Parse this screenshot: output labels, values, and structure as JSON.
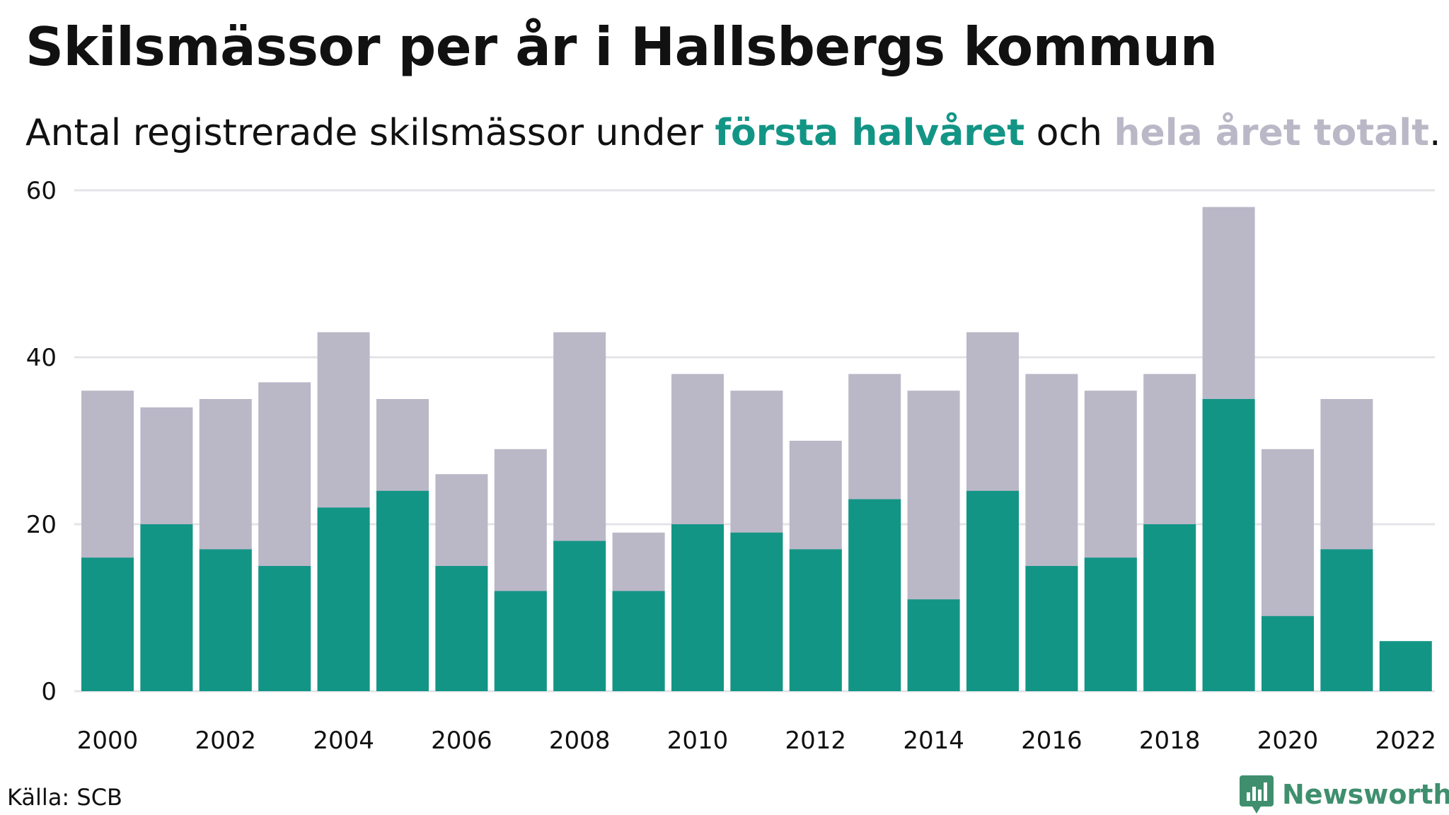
{
  "header": {
    "title": "Skilsmässor per år i Hallsbergs kommun",
    "subtitle_prefix": "Antal registrerade skilsmässor under ",
    "subtitle_highlight1": "första halvåret",
    "subtitle_mid": " och ",
    "subtitle_highlight2": "hela året totalt",
    "subtitle_suffix": "."
  },
  "footer": {
    "source": "Källa: SCB",
    "brand": "Newsworthy"
  },
  "colors": {
    "first_half": "#139586",
    "full_year": "#bab8c7",
    "grid": "#e4e4e8",
    "text": "#111111",
    "brand": "#3f8f6e"
  },
  "chart_data": {
    "type": "bar",
    "stacked": "overlay",
    "categories": [
      2000,
      2001,
      2002,
      2003,
      2004,
      2005,
      2006,
      2007,
      2008,
      2009,
      2010,
      2011,
      2012,
      2013,
      2014,
      2015,
      2016,
      2017,
      2018,
      2019,
      2020,
      2021,
      2022
    ],
    "x_tick_labels": [
      "2000",
      "2002",
      "2004",
      "2006",
      "2008",
      "2010",
      "2012",
      "2014",
      "2016",
      "2018",
      "2020",
      "2022"
    ],
    "series": [
      {
        "name": "hela året totalt",
        "color": "#bab8c7",
        "values": [
          36,
          34,
          35,
          37,
          43,
          35,
          26,
          29,
          43,
          19,
          38,
          36,
          30,
          38,
          36,
          43,
          38,
          36,
          38,
          58,
          29,
          35,
          null
        ]
      },
      {
        "name": "första halvåret",
        "color": "#139586",
        "values": [
          16,
          20,
          17,
          15,
          22,
          24,
          15,
          12,
          18,
          12,
          20,
          19,
          17,
          23,
          11,
          24,
          15,
          16,
          20,
          35,
          9,
          17,
          6
        ]
      }
    ],
    "y_ticks": [
      0,
      20,
      40,
      60
    ],
    "ylim": [
      0,
      60
    ],
    "grid": true,
    "xlabel": "",
    "ylabel": ""
  }
}
